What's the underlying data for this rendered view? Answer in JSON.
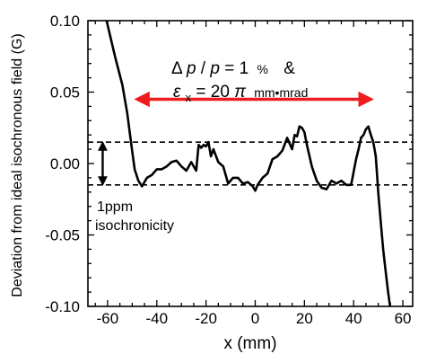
{
  "chart_data": {
    "type": "line",
    "xlabel": "x (mm)",
    "ylabel": "Deviation from ideal isochronous field (G)",
    "xlim": [
      -68,
      64
    ],
    "ylim": [
      -0.1,
      0.1
    ],
    "xticks": [
      -60,
      -40,
      -20,
      0,
      20,
      40,
      60
    ],
    "xtick_labels": [
      "-60",
      "-40",
      "-20",
      "0",
      "20",
      "40",
      "60"
    ],
    "yticks": [
      0.1,
      0.05,
      0.0,
      -0.05,
      -0.1
    ],
    "ytick_labels": [
      "0.10",
      "0.05",
      "0.00",
      "-0.05",
      "-0.10"
    ],
    "grid": false,
    "series": [
      {
        "color": "#000000",
        "x": [
          -60.4,
          -57,
          -54,
          -52,
          -50.5,
          -49,
          -47.5,
          -46,
          -44,
          -42,
          -40,
          -38,
          -36,
          -34,
          -32,
          -30,
          -28,
          -26,
          -24,
          -23,
          -22,
          -21,
          -20,
          -19,
          -18,
          -17,
          -15,
          -13,
          -11,
          -9,
          -7,
          -5,
          -3,
          -1,
          0,
          1,
          3,
          5,
          7,
          9,
          11,
          13,
          15,
          16,
          17,
          18,
          19,
          20,
          21,
          23,
          25,
          27,
          29,
          31,
          33,
          35,
          37,
          39,
          41,
          42,
          43,
          44,
          45,
          46,
          47,
          48,
          49,
          50,
          51,
          52,
          53,
          54,
          54.8
        ],
        "y": [
          0.1,
          0.075,
          0.055,
          0.035,
          0.015,
          -0.004,
          -0.012,
          -0.016,
          -0.01,
          -0.008,
          -0.004,
          -0.004,
          -0.002,
          0.001,
          0.002,
          -0.002,
          -0.005,
          0.001,
          -0.005,
          0.013,
          0.011,
          0.013,
          0.012,
          0.015,
          0.005,
          0.01,
          0.001,
          -0.002,
          -0.014,
          -0.01,
          -0.01,
          -0.014,
          -0.013,
          -0.016,
          -0.019,
          -0.015,
          -0.01,
          -0.007,
          0.003,
          0.005,
          0.009,
          0.018,
          0.01,
          0.02,
          0.019,
          0.026,
          0.025,
          0.022,
          0.013,
          -0.002,
          -0.012,
          -0.017,
          -0.018,
          -0.012,
          -0.014,
          -0.012,
          -0.015,
          -0.015,
          0.003,
          0.01,
          0.018,
          0.02,
          0.024,
          0.026,
          0.02,
          0.015,
          0.005,
          -0.02,
          -0.04,
          -0.06,
          -0.075,
          -0.09,
          -0.1
        ]
      }
    ],
    "reference_lines": [
      {
        "y": 0.015,
        "style": "dashed"
      },
      {
        "y": -0.015,
        "style": "dashed"
      }
    ],
    "range_arrow": {
      "x_start": -48,
      "x_end": 47,
      "y": 0.045,
      "color": "#ee1c1c"
    },
    "tolerance_arrow": {
      "x": -62,
      "y_top": 0.015,
      "y_bottom": -0.015
    },
    "annotations": {
      "delta_p": {
        "delta": "Δ",
        "p1": "p",
        "slash": "/",
        "p2": "p",
        "eq": " = 1",
        "unit": "%",
        "amp": "&"
      },
      "emittance": {
        "symbol": "ε",
        "subscript": "x",
        "eq": " = 20",
        "pi": "π",
        "unit": "mm•mrad"
      },
      "tolerance_line1": "1ppm",
      "tolerance_line2": "isochronicity"
    }
  }
}
